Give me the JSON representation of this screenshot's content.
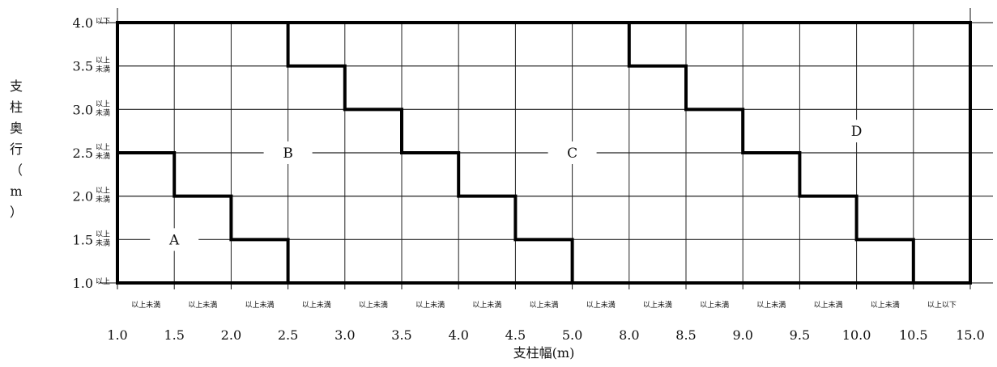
{
  "chart_data": {
    "type": "table",
    "xlabel": "支柱幅(m)",
    "ylabel": "支柱奥行（m）",
    "x_ticks": [
      "1.0",
      "1.5",
      "2.0",
      "2.5",
      "3.0",
      "3.5",
      "4.0",
      "4.5",
      "5.0",
      "8.0",
      "8.5",
      "9.0",
      "9.5",
      "10.0",
      "10.5",
      "15.0"
    ],
    "x_range_notes": [
      "以上未満",
      "以上未満",
      "以上未満",
      "以上未満",
      "以上未満",
      "以上未満",
      "以上未満",
      "以上未満",
      "以上未満",
      "以上未満",
      "以上未満",
      "以上未満",
      "以上未満",
      "以上未満",
      "以上以下"
    ],
    "y_ticks": [
      {
        "value": "4.0",
        "note": [
          "以下"
        ]
      },
      {
        "value": "3.5",
        "note": [
          "以上",
          "未満"
        ]
      },
      {
        "value": "3.0",
        "note": [
          "以上",
          "未満"
        ]
      },
      {
        "value": "2.5",
        "note": [
          "以上",
          "未満"
        ]
      },
      {
        "value": "2.0",
        "note": [
          "以上",
          "未満"
        ]
      },
      {
        "value": "1.5",
        "note": [
          "以上",
          "未満"
        ]
      },
      {
        "value": "1.0",
        "note": [
          "以上"
        ]
      }
    ],
    "regions": [
      {
        "label": "A",
        "cell": [
          1,
          1
        ]
      },
      {
        "label": "B",
        "cell": [
          3,
          3
        ]
      },
      {
        "label": "C",
        "cell": [
          8,
          3
        ]
      },
      {
        "label": "D",
        "cell": [
          13,
          3.5
        ]
      }
    ],
    "boundary_AB": [
      [
        0,
        3
      ],
      [
        1,
        3
      ],
      [
        1,
        2
      ],
      [
        2,
        2
      ],
      [
        2,
        1
      ],
      [
        3,
        1
      ],
      [
        3,
        0
      ]
    ],
    "boundary_BC": [
      [
        3,
        6
      ],
      [
        3,
        5
      ],
      [
        4,
        5
      ],
      [
        4,
        4
      ],
      [
        5,
        4
      ],
      [
        5,
        3
      ],
      [
        6,
        3
      ],
      [
        6,
        2
      ],
      [
        7,
        2
      ],
      [
        7,
        1
      ],
      [
        8,
        1
      ],
      [
        8,
        0
      ]
    ],
    "boundary_CD": [
      [
        9,
        6
      ],
      [
        9,
        5
      ],
      [
        10,
        5
      ],
      [
        10,
        4
      ],
      [
        11,
        4
      ],
      [
        11,
        3
      ],
      [
        12,
        3
      ],
      [
        12,
        2
      ],
      [
        13,
        2
      ],
      [
        13,
        1
      ],
      [
        14,
        1
      ],
      [
        14,
        0
      ]
    ]
  }
}
